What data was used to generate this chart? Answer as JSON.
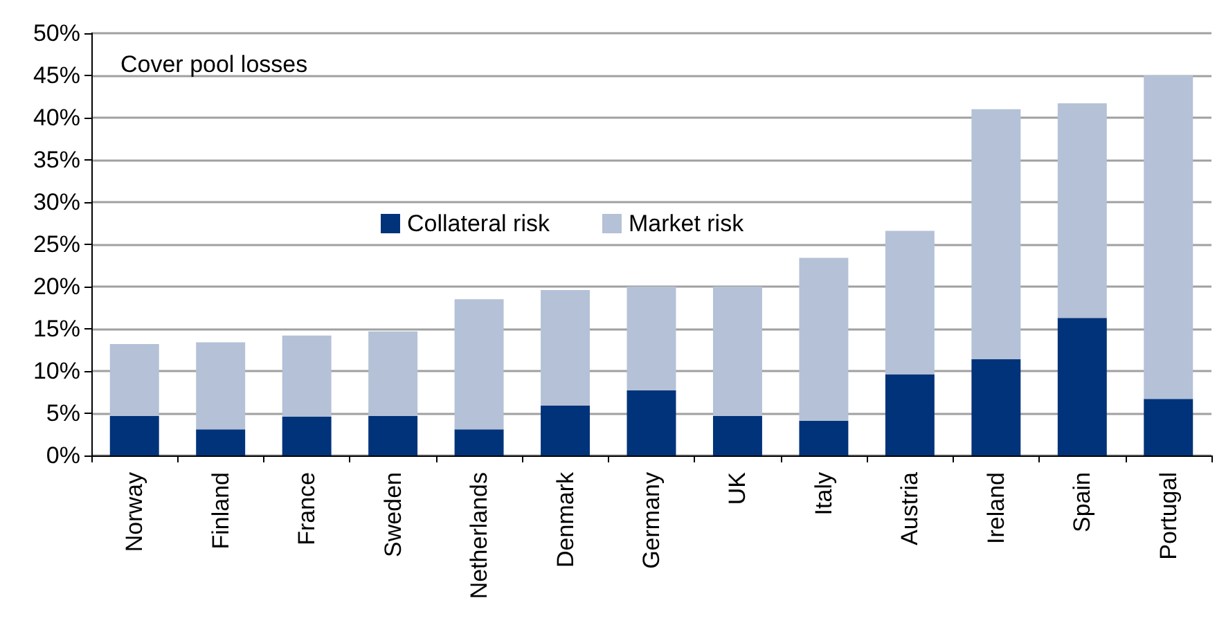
{
  "chart_data": {
    "type": "bar",
    "title": "Cover pool losses",
    "stacked": true,
    "categories": [
      "Norway",
      "Finland",
      "France",
      "Sweden",
      "Netherlands",
      "Denmark",
      "Germany",
      "UK",
      "Italy",
      "Austria",
      "Ireland",
      "Spain",
      "Portugal"
    ],
    "series": [
      {
        "name": "Collateral risk",
        "color": "#00337a",
        "values": [
          4.7,
          3.1,
          4.6,
          4.7,
          3.1,
          5.9,
          7.7,
          4.7,
          4.1,
          9.6,
          11.4,
          16.3,
          6.7
        ]
      },
      {
        "name": "Market risk",
        "color": "#b4c1d7",
        "values": [
          8.5,
          10.3,
          9.6,
          10.0,
          15.4,
          13.7,
          12.3,
          15.3,
          19.3,
          17.0,
          29.6,
          25.4,
          38.3
        ]
      }
    ],
    "ylim": [
      0,
      50
    ],
    "yticks": [
      {
        "value": 0,
        "label": "0%"
      },
      {
        "value": 5,
        "label": "5%"
      },
      {
        "value": 10,
        "label": "10%"
      },
      {
        "value": 15,
        "label": "15%"
      },
      {
        "value": 20,
        "label": "20%"
      },
      {
        "value": 25,
        "label": "25%"
      },
      {
        "value": 30,
        "label": "30%"
      },
      {
        "value": 35,
        "label": "35%"
      },
      {
        "value": 40,
        "label": "40%"
      },
      {
        "value": 45,
        "label": "45%"
      },
      {
        "value": 50,
        "label": "50%"
      }
    ],
    "grid": "y",
    "legend": "center"
  }
}
